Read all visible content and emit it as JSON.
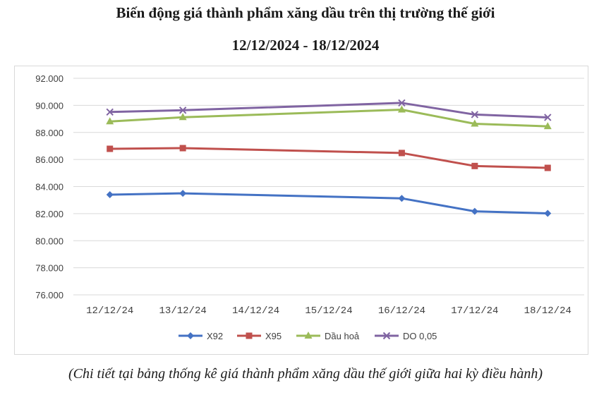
{
  "header": {
    "title": "Biến động giá thành phẩm xăng dầu trên thị trường thế giới",
    "subtitle": "12/12/2024 - 18/12/2024"
  },
  "caption": "(Chi tiết tại bảng thống kê giá thành phẩm xăng dầu thế giới giữa hai kỳ điều hành)",
  "chart_data": {
    "type": "line",
    "title": "Biến động giá thành phẩm xăng dầu trên thị trường thế giới",
    "subtitle": "12/12/2024 - 18/12/2024",
    "categories": [
      "12/12/24",
      "13/12/24",
      "14/12/24",
      "15/12/24",
      "16/12/24",
      "17/12/24",
      "18/12/24"
    ],
    "yticks": [
      "76.000",
      "78.000",
      "80.000",
      "82.000",
      "84.000",
      "86.000",
      "88.000",
      "90.000",
      "92.000"
    ],
    "ylim": [
      76000,
      92000
    ],
    "grid": true,
    "legend_position": "bottom",
    "series": [
      {
        "name": "X92",
        "color": "#4472c4",
        "marker": "diamond",
        "values": [
          83400,
          83500,
          null,
          null,
          83130,
          82170,
          82020
        ]
      },
      {
        "name": "X95",
        "color": "#c0504d",
        "marker": "square",
        "values": [
          86790,
          86840,
          null,
          null,
          86480,
          85520,
          85380
        ]
      },
      {
        "name": "Dầu hoả",
        "color": "#9bbb59",
        "marker": "triangle",
        "values": [
          88810,
          89120,
          null,
          null,
          89680,
          88640,
          88450
        ]
      },
      {
        "name": "DO 0,05",
        "color": "#8064a2",
        "marker": "x",
        "values": [
          89510,
          89640,
          null,
          null,
          90180,
          89320,
          89110
        ]
      }
    ]
  }
}
